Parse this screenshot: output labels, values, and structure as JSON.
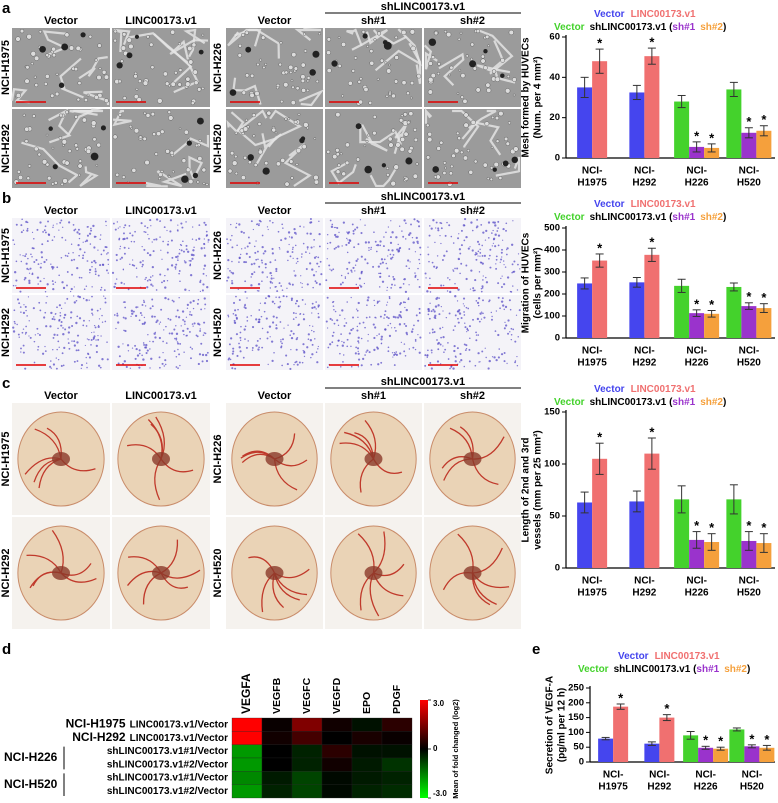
{
  "image_panels": [
    {
      "label": "a",
      "left_columns": [
        "Vector",
        "LINC00173.v1"
      ],
      "left_rows": [
        "NCI-H1975",
        "NCI-H292"
      ],
      "right_group": "shLINC00173.v1",
      "right_columns": [
        "Vector",
        "sh#1",
        "sh#2"
      ],
      "right_rows": [
        "NCI-H226",
        "NCI-H520"
      ]
    },
    {
      "label": "b",
      "left_columns": [
        "Vector",
        "LINC00173.v1"
      ],
      "left_rows": [
        "NCI-H1975",
        "NCI-H292"
      ],
      "right_group": "shLINC00173.v1",
      "right_columns": [
        "Vector",
        "sh#1",
        "sh#2"
      ],
      "right_rows": [
        "NCI-H226",
        "NCI-H520"
      ]
    },
    {
      "label": "c",
      "left_columns": [
        "Vector",
        "LINC00173.v1"
      ],
      "left_rows": [
        "NCI-H1975",
        "NCI-H292"
      ],
      "right_group": "shLINC00173.v1",
      "right_columns": [
        "Vector",
        "sh#1",
        "sh#2"
      ],
      "right_rows": [
        "NCI-H226",
        "NCI-H520"
      ]
    }
  ],
  "chart_data": [
    {
      "type": "bar",
      "y_label": [
        "Mesh formed by HUVECs",
        "(Num. per 4 mm²)"
      ],
      "categories": [
        [
          "NCI-",
          "H1975"
        ],
        [
          "NCI-",
          "H292"
        ],
        [
          "NCI-",
          "H226"
        ],
        [
          "NCI-",
          "H520"
        ]
      ],
      "series": [
        {
          "name": "Vector",
          "color": "#4545ee",
          "values": [
            35,
            32.5,
            null,
            null
          ],
          "errors": [
            5,
            3.5,
            null,
            null
          ]
        },
        {
          "name": "LINC00173.v1",
          "color": "#f07070",
          "values": [
            48,
            50.5,
            null,
            null
          ],
          "errors": [
            6,
            4,
            null,
            null
          ],
          "marks": [
            "*",
            "*",
            null,
            null
          ]
        },
        {
          "name": "Vector",
          "color": "#44d22c",
          "values": [
            null,
            null,
            28,
            34
          ],
          "errors": [
            null,
            null,
            3,
            3.5
          ]
        },
        {
          "name": "sh#1",
          "color": "#9a33cc",
          "values": [
            null,
            null,
            5.5,
            12.5
          ],
          "errors": [
            null,
            null,
            2.5,
            2.5
          ],
          "marks": [
            null,
            null,
            "*",
            "*"
          ]
        },
        {
          "name": "sh#2",
          "color": "#f5a03c",
          "values": [
            null,
            null,
            5,
            13.5
          ],
          "errors": [
            null,
            null,
            2,
            2.5
          ],
          "marks": [
            null,
            null,
            "*",
            "*"
          ]
        }
      ],
      "legend_prefix": "shLINC00173.v1 (",
      "legend_suffix": ")",
      "ylim": [
        0,
        60
      ],
      "yticks": [
        0,
        20,
        40,
        60
      ]
    },
    {
      "type": "bar",
      "y_label": [
        "Migration of HUVECs",
        "(cells per mm²)"
      ],
      "categories": [
        [
          "NCI-",
          "H1975"
        ],
        [
          "NCI-",
          "H292"
        ],
        [
          "NCI-",
          "H226"
        ],
        [
          "NCI-",
          "H520"
        ]
      ],
      "series": [
        {
          "name": "Vector",
          "color": "#4545ee",
          "values": [
            248,
            253,
            null,
            null
          ],
          "errors": [
            25,
            22,
            null,
            null
          ]
        },
        {
          "name": "LINC00173.v1",
          "color": "#f07070",
          "values": [
            352,
            378,
            null,
            null
          ],
          "errors": [
            30,
            30,
            null,
            null
          ],
          "marks": [
            "*",
            "*",
            null,
            null
          ]
        },
        {
          "name": "Vector",
          "color": "#44d22c",
          "values": [
            null,
            null,
            237,
            232
          ],
          "errors": [
            null,
            null,
            30,
            18
          ]
        },
        {
          "name": "sh#1",
          "color": "#9a33cc",
          "values": [
            null,
            null,
            113,
            145
          ],
          "errors": [
            null,
            null,
            15,
            15
          ],
          "marks": [
            null,
            null,
            "*",
            "*"
          ]
        },
        {
          "name": "sh#2",
          "color": "#f5a03c",
          "values": [
            null,
            null,
            110,
            136
          ],
          "errors": [
            null,
            null,
            15,
            20
          ],
          "marks": [
            null,
            null,
            "*",
            "*"
          ]
        }
      ],
      "legend_prefix": "shLINC00173.v1 (",
      "legend_suffix": ")",
      "ylim": [
        0,
        500
      ],
      "yticks": [
        0,
        100,
        200,
        300,
        400,
        500
      ]
    },
    {
      "type": "bar",
      "y_label": [
        "Length of 2nd and 3rd",
        "vessels (mm per 25 mm²)"
      ],
      "categories": [
        [
          "NCI-",
          "H1975"
        ],
        [
          "NCI-",
          "H292"
        ],
        [
          "NCI-",
          "H226"
        ],
        [
          "NCI-",
          "H520"
        ]
      ],
      "series": [
        {
          "name": "Vector",
          "color": "#4545ee",
          "values": [
            63,
            64,
            null,
            null
          ],
          "errors": [
            10,
            10,
            null,
            null
          ]
        },
        {
          "name": "LINC00173.v1",
          "color": "#f07070",
          "values": [
            105,
            110,
            null,
            null
          ],
          "errors": [
            15,
            15,
            null,
            null
          ],
          "marks": [
            "*",
            "*",
            null,
            null
          ]
        },
        {
          "name": "Vector",
          "color": "#44d22c",
          "values": [
            null,
            null,
            66,
            66
          ],
          "errors": [
            null,
            null,
            13,
            14
          ]
        },
        {
          "name": "sh#1",
          "color": "#9a33cc",
          "values": [
            null,
            null,
            27,
            26
          ],
          "errors": [
            null,
            null,
            8,
            9
          ],
          "marks": [
            null,
            null,
            "*",
            "*"
          ]
        },
        {
          "name": "sh#2",
          "color": "#f5a03c",
          "values": [
            null,
            null,
            25,
            24
          ],
          "errors": [
            null,
            null,
            8,
            9
          ],
          "marks": [
            null,
            null,
            "*",
            "*"
          ]
        }
      ],
      "legend_prefix": "shLINC00173.v1 (",
      "legend_suffix": ")",
      "ylim": [
        0,
        150
      ],
      "yticks": [
        0,
        50,
        100,
        150
      ]
    },
    {
      "type": "heatmap",
      "panel_label": "d",
      "columns": [
        "VEGFA",
        "VEGFB",
        "VEGFC",
        "VEGFD",
        "EPO",
        "PDGF"
      ],
      "column_label_colors": [
        "#e8262a",
        "#000000",
        "#000000",
        "#000000",
        "#000000",
        "#000000"
      ],
      "row_groups": [
        "NCI-H1975",
        "NCI-H292",
        "NCI-H226",
        "NCI-H520"
      ],
      "row_labels": [
        "LINC00173.v1/Vector",
        "LINC00173.v1/Vector",
        "shLINC00173.v1#1/Vector",
        "shLINC00173.v1#2/Vector",
        "shLINC00173.v1#1/Vector",
        "shLINC00173.v1#2/Vector"
      ],
      "values": [
        [
          3.0,
          0.1,
          1.5,
          0.2,
          -0.2,
          0.5
        ],
        [
          3.0,
          0.2,
          0.8,
          0.0,
          0.3,
          0.1
        ],
        [
          -1.8,
          0.0,
          -0.4,
          0.5,
          -0.2,
          -0.2
        ],
        [
          -1.8,
          0.0,
          -0.4,
          0.2,
          -0.3,
          -0.6
        ],
        [
          -1.6,
          -0.3,
          -0.8,
          -0.1,
          -0.3,
          -0.4
        ],
        [
          -1.8,
          -0.4,
          -0.8,
          -0.1,
          -0.4,
          -0.5
        ]
      ],
      "colormap": [
        "#00ff00",
        "#000000",
        "#ff0000"
      ],
      "clim": [
        -3,
        3
      ],
      "cticks": [
        {
          "value": 3,
          "label": "3.0"
        },
        0,
        {
          "value": -3,
          "label": "-3.0"
        }
      ],
      "colorbar_label": "Mean of fold changed (log2)"
    },
    {
      "type": "bar",
      "panel_label": "e",
      "y_label": [
        "Secretion of VEGF-A",
        "(pg/ml per 12 h)"
      ],
      "categories": [
        [
          "NCI-",
          "H1975"
        ],
        [
          "NCI-",
          "H292"
        ],
        [
          "NCI-",
          "H226"
        ],
        [
          "NCI-",
          "H520"
        ]
      ],
      "series": [
        {
          "name": "Vector",
          "color": "#4545ee",
          "values": [
            79,
            62,
            null,
            null
          ],
          "errors": [
            4,
            6,
            null,
            null
          ]
        },
        {
          "name": "LINC00173.v1",
          "color": "#f07070",
          "values": [
            187,
            150,
            null,
            null
          ],
          "errors": [
            9,
            10,
            null,
            null
          ],
          "marks": [
            "*",
            "*",
            null,
            null
          ]
        },
        {
          "name": "Vector",
          "color": "#44d22c",
          "values": [
            null,
            null,
            90,
            110
          ],
          "errors": [
            null,
            null,
            13,
            5
          ]
        },
        {
          "name": "sh#1",
          "color": "#9a33cc",
          "values": [
            null,
            null,
            48,
            53
          ],
          "errors": [
            null,
            null,
            5,
            5
          ],
          "marks": [
            null,
            null,
            "*",
            "*"
          ]
        },
        {
          "name": "sh#2",
          "color": "#f5a03c",
          "values": [
            null,
            null,
            45,
            48
          ],
          "errors": [
            null,
            null,
            5,
            8
          ],
          "marks": [
            null,
            null,
            "*",
            "*"
          ]
        }
      ],
      "legend_prefix": "shLINC00173.v1 (",
      "legend_suffix": ")",
      "ylim": [
        0,
        250
      ],
      "yticks": [
        0,
        50,
        100,
        150,
        200,
        250
      ]
    }
  ]
}
